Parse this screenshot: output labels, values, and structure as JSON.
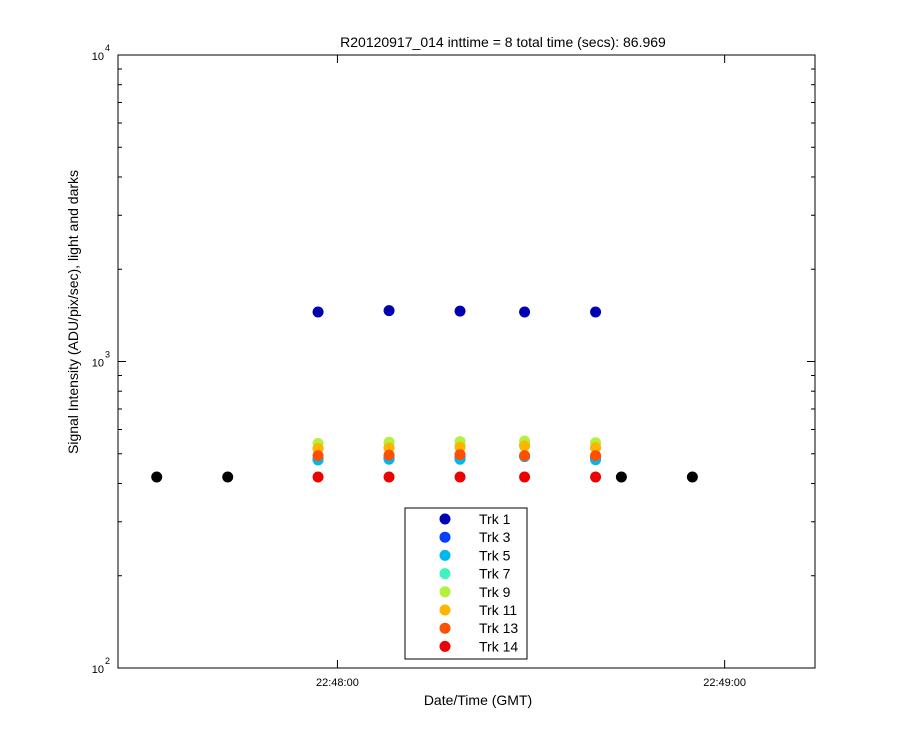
{
  "chart_data": {
    "type": "scatter",
    "title": "R20120917_014 inttime = 8 total time (secs): 86.969",
    "xlabel": "Date/Time (GMT)",
    "ylabel": "Signal Intensity (ADU/pix/sec), light and darks",
    "y_scale": "log",
    "ylim": [
      100,
      10000
    ],
    "xlim": [
      "22:47:26",
      "22:49:14"
    ],
    "x_ticks": [
      {
        "time": "22:48:00",
        "label": "22:48:00"
      },
      {
        "time": "22:49:00",
        "label": "22:49:00"
      }
    ],
    "y_ticks": [
      {
        "value": 100,
        "base": "10",
        "exp": "2"
      },
      {
        "value": 1000,
        "base": "10",
        "exp": "3"
      },
      {
        "value": 10000,
        "base": "10",
        "exp": "4"
      }
    ],
    "grid": false,
    "legend_position": "bottom-center",
    "times": [
      "22:47:57",
      "22:48:08",
      "22:48:19",
      "22:48:29",
      "22:48:40"
    ],
    "series": [
      {
        "name": "Trk 1",
        "color": "#0000b3",
        "values": [
          1450,
          1465,
          1460,
          1450,
          1450
        ]
      },
      {
        "name": "Trk 3",
        "color": "#0040ff",
        "values": [
          480,
          485,
          485,
          490,
          485
        ]
      },
      {
        "name": "Trk 5",
        "color": "#00b8f0",
        "values": [
          477,
          480,
          480,
          490,
          478
        ]
      },
      {
        "name": "Trk 7",
        "color": "#40f2c0",
        "values": [
          520,
          525,
          530,
          535,
          525
        ]
      },
      {
        "name": "Trk 9",
        "color": "#b4f03c",
        "values": [
          540,
          545,
          548,
          550,
          543
        ]
      },
      {
        "name": "Trk 11",
        "color": "#ffb400",
        "values": [
          520,
          522,
          525,
          530,
          523
        ]
      },
      {
        "name": "Trk 13",
        "color": "#ff5000",
        "values": [
          493,
          495,
          497,
          493,
          493
        ]
      },
      {
        "name": "Trk 14",
        "color": "#ee0000",
        "values": [
          420,
          420,
          420,
          420,
          420
        ]
      }
    ],
    "darks": {
      "color": "#000000",
      "points": [
        {
          "time": "22:47:32",
          "value": 420
        },
        {
          "time": "22:47:43",
          "value": 420
        },
        {
          "time": "22:48:44",
          "value": 420
        },
        {
          "time": "22:48:55",
          "value": 420
        }
      ]
    }
  }
}
